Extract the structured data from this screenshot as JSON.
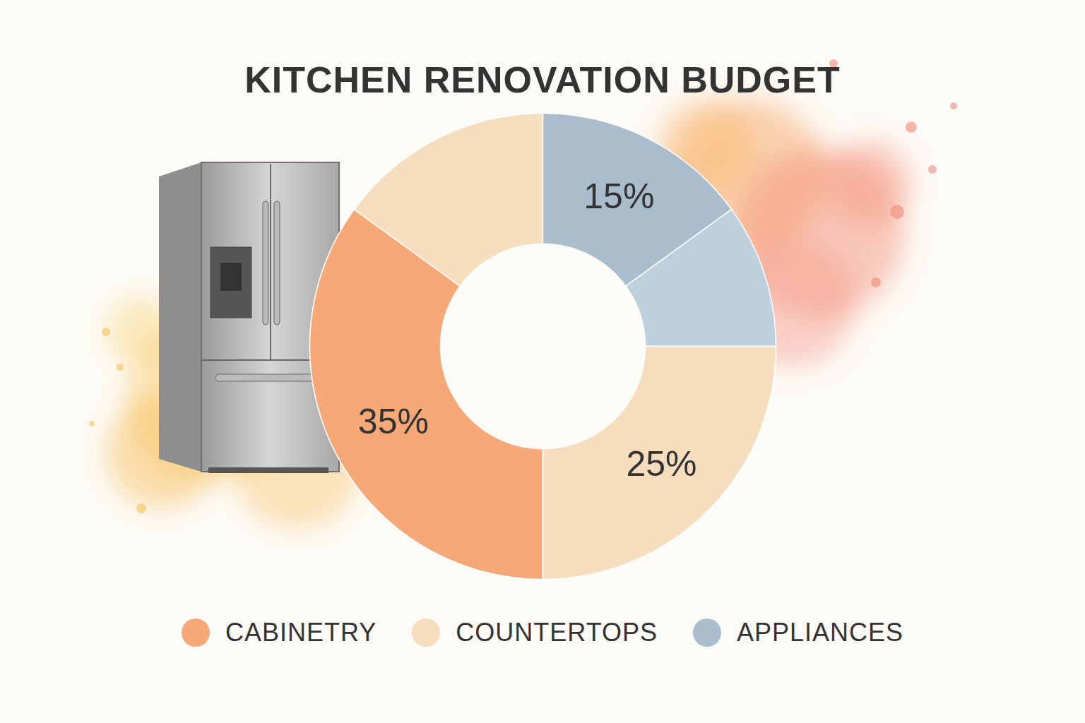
{
  "chart_data": {
    "type": "pie",
    "title": "KITCHEN RENOVATION BUDGET",
    "categories": [
      "CABINETRY",
      "COUNTERTOPS",
      "APPLIANCES",
      "APPLIANCES",
      "COUNTERTOPS"
    ],
    "values": [
      35,
      15,
      15,
      10,
      25
    ],
    "value_labels": [
      "35%",
      null,
      "15%",
      null,
      "25%"
    ],
    "colors": [
      "#f6a877",
      "#f5ddbd",
      "#a9bdcc",
      "#bdd0dc",
      "#f5ddbd"
    ],
    "data_labels": true,
    "legend": "bottom"
  }
}
